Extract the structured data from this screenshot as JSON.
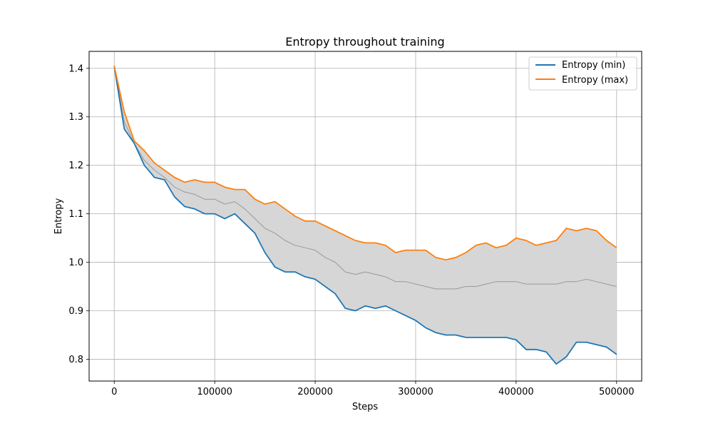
{
  "chart_data": {
    "type": "line",
    "title": "Entropy throughout training",
    "xlabel": "Steps",
    "ylabel": "Entropy",
    "xlim": [
      -25000,
      525000
    ],
    "ylim": [
      0.755,
      1.435
    ],
    "grid": true,
    "legend_position": "top-right",
    "x_ticks": [
      0,
      100000,
      200000,
      300000,
      400000,
      500000
    ],
    "x_tick_labels": [
      "0",
      "100000",
      "200000",
      "300000",
      "400000",
      "500000"
    ],
    "y_ticks": [
      0.8,
      0.9,
      1.0,
      1.1,
      1.2,
      1.3,
      1.4
    ],
    "y_tick_labels": [
      "0.8",
      "0.9",
      "1.0",
      "1.1",
      "1.2",
      "1.3",
      "1.4"
    ],
    "x": [
      0,
      10000,
      20000,
      30000,
      40000,
      50000,
      60000,
      70000,
      80000,
      90000,
      100000,
      110000,
      120000,
      130000,
      140000,
      150000,
      160000,
      170000,
      180000,
      190000,
      200000,
      210000,
      220000,
      230000,
      240000,
      250000,
      260000,
      270000,
      280000,
      290000,
      300000,
      310000,
      320000,
      330000,
      340000,
      350000,
      360000,
      370000,
      380000,
      390000,
      400000,
      410000,
      420000,
      430000,
      440000,
      450000,
      460000,
      470000,
      480000,
      490000,
      500000
    ],
    "series": [
      {
        "name": "Entropy (min)",
        "color": "#1f77b4",
        "values": [
          1.405,
          1.275,
          1.245,
          1.2,
          1.175,
          1.17,
          1.135,
          1.115,
          1.11,
          1.1,
          1.1,
          1.09,
          1.1,
          1.08,
          1.06,
          1.02,
          0.99,
          0.98,
          0.98,
          0.97,
          0.965,
          0.95,
          0.935,
          0.905,
          0.9,
          0.91,
          0.905,
          0.91,
          0.9,
          0.89,
          0.88,
          0.865,
          0.855,
          0.85,
          0.85,
          0.845,
          0.845,
          0.845,
          0.845,
          0.845,
          0.84,
          0.82,
          0.82,
          0.815,
          0.79,
          0.805,
          0.835,
          0.835,
          0.83,
          0.825,
          0.81
        ]
      },
      {
        "name": "Entropy (max)",
        "color": "#ff7f0e",
        "values": [
          1.405,
          1.31,
          1.25,
          1.23,
          1.205,
          1.19,
          1.175,
          1.165,
          1.17,
          1.165,
          1.165,
          1.155,
          1.15,
          1.15,
          1.13,
          1.12,
          1.125,
          1.11,
          1.095,
          1.085,
          1.085,
          1.075,
          1.065,
          1.055,
          1.045,
          1.04,
          1.04,
          1.035,
          1.02,
          1.025,
          1.025,
          1.025,
          1.01,
          1.005,
          1.01,
          1.02,
          1.035,
          1.04,
          1.03,
          1.035,
          1.05,
          1.045,
          1.035,
          1.04,
          1.045,
          1.07,
          1.065,
          1.07,
          1.065,
          1.045,
          1.03
        ]
      },
      {
        "name": "mean",
        "color": "#999999",
        "values": [
          1.405,
          1.29,
          1.245,
          1.21,
          1.19,
          1.175,
          1.155,
          1.145,
          1.14,
          1.13,
          1.13,
          1.12,
          1.125,
          1.11,
          1.09,
          1.07,
          1.06,
          1.045,
          1.035,
          1.03,
          1.025,
          1.01,
          1.0,
          0.98,
          0.975,
          0.98,
          0.975,
          0.97,
          0.96,
          0.96,
          0.955,
          0.95,
          0.945,
          0.945,
          0.945,
          0.95,
          0.95,
          0.955,
          0.96,
          0.96,
          0.96,
          0.955,
          0.955,
          0.955,
          0.955,
          0.96,
          0.96,
          0.965,
          0.96,
          0.955,
          0.95
        ]
      }
    ]
  }
}
